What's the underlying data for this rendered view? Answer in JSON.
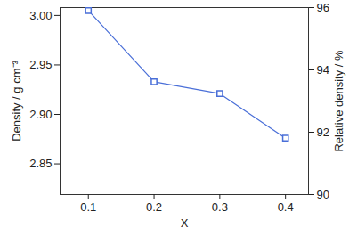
{
  "chart_data": {
    "type": "line",
    "x": [
      0.1,
      0.2,
      0.3,
      0.4
    ],
    "values": [
      3.005,
      2.933,
      2.921,
      2.876
    ],
    "color": "#4a6fd8",
    "marker": "square",
    "line_style": "solid",
    "xlabel": "X",
    "ylabel": "Density / g cm⁻³",
    "y2label": "Relative density / %",
    "xlim": [
      0.057,
      0.435
    ],
    "xticks": [
      0.1,
      0.2,
      0.3,
      0.4
    ],
    "ylim": [
      2.819,
      3.008
    ],
    "yticks": [
      {
        "value": 2.85,
        "label": "2.85"
      },
      {
        "value": 2.9,
        "label": "2.90"
      },
      {
        "value": 2.95,
        "label": "2.95"
      },
      {
        "value": 3,
        "label": "3.00"
      }
    ],
    "y2lim": [
      90,
      96
    ],
    "y2ticks": [
      90,
      92,
      94,
      96
    ],
    "grid": false
  }
}
